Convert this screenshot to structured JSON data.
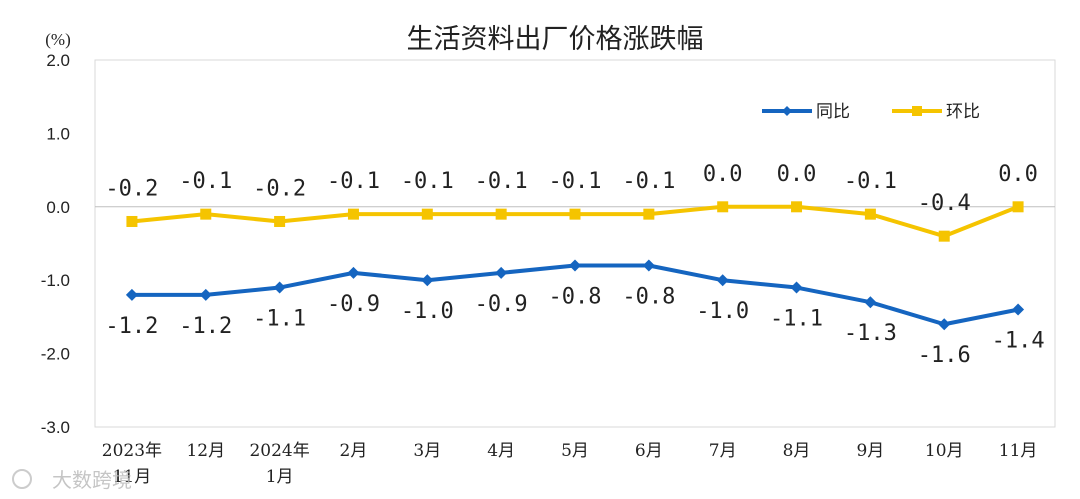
{
  "chart_data": {
    "type": "line",
    "title": "生活资料出厂价格涨跌幅",
    "ylabel": "(%)",
    "categories": [
      [
        "2023年",
        "11月"
      ],
      [
        "12月"
      ],
      [
        "2024年",
        "1月"
      ],
      [
        "2月"
      ],
      [
        "3月"
      ],
      [
        "4月"
      ],
      [
        "5月"
      ],
      [
        "6月"
      ],
      [
        "7月"
      ],
      [
        "8月"
      ],
      [
        "9月"
      ],
      [
        "10月"
      ],
      [
        "11月"
      ]
    ],
    "ylim": [
      -3.0,
      2.0
    ],
    "yticks": [
      "2.0",
      "1.0",
      "0.0",
      "-1.0",
      "-2.0",
      "-3.0"
    ],
    "legend_position": "top-right",
    "series": [
      {
        "name": "同比",
        "color": "#1565c0",
        "marker": "diamond",
        "values": [
          -1.2,
          -1.2,
          -1.1,
          -0.9,
          -1.0,
          -0.9,
          -0.8,
          -0.8,
          -1.0,
          -1.1,
          -1.3,
          -1.6,
          -1.4
        ],
        "labels": [
          "-1.2",
          "-1.2",
          "-1.1",
          "-0.9",
          "-1.0",
          "-0.9",
          "-0.8",
          "-0.8",
          "-1.0",
          "-1.1",
          "-1.3",
          "-1.6",
          "-1.4"
        ]
      },
      {
        "name": "环比",
        "color": "#f5c400",
        "marker": "square",
        "values": [
          -0.2,
          -0.1,
          -0.2,
          -0.1,
          -0.1,
          -0.1,
          -0.1,
          -0.1,
          0.0,
          0.0,
          -0.1,
          -0.4,
          0.0
        ],
        "labels": [
          "-0.2",
          "-0.1",
          "-0.2",
          "-0.1",
          "-0.1",
          "-0.1",
          "-0.1",
          "-0.1",
          "0.0",
          "0.0",
          "-0.1",
          "-0.4",
          "0.0"
        ]
      }
    ]
  },
  "watermark": "大数跨境"
}
